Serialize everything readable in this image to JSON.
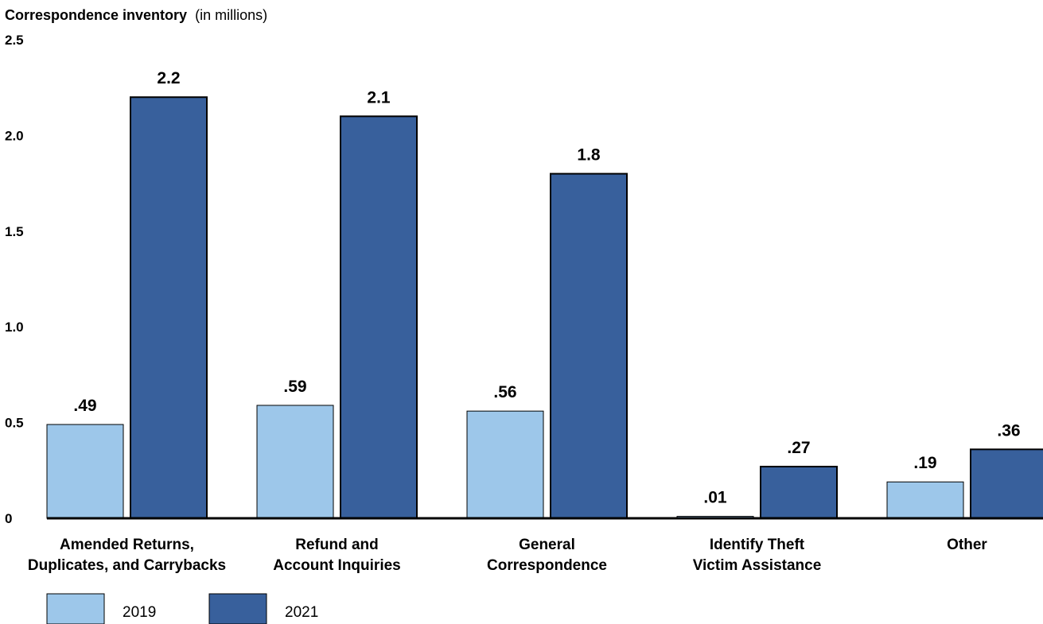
{
  "chart_data": {
    "type": "bar",
    "title": "Correspondence inventory",
    "title_unit": "(in millions)",
    "categories": [
      [
        "Amended Returns,",
        "Duplicates, and Carrybacks"
      ],
      [
        "Refund and",
        "Account Inquiries"
      ],
      [
        "General",
        "Correspondence"
      ],
      [
        "Identify Theft",
        "Victim Assistance"
      ],
      [
        "Other"
      ]
    ],
    "series": [
      {
        "name": "2019",
        "color": "#9dc7ea",
        "values": [
          0.49,
          0.59,
          0.56,
          0.01,
          0.19
        ],
        "labels": [
          ".49",
          ".59",
          ".56",
          ".01",
          ".19"
        ]
      },
      {
        "name": "2021",
        "color": "#38609c",
        "values": [
          2.2,
          2.1,
          1.8,
          0.27,
          0.36
        ],
        "labels": [
          "2.2",
          "2.1",
          "1.8",
          ".27",
          ".36"
        ]
      }
    ],
    "ylim": [
      0,
      2.5
    ],
    "yticks": [
      0,
      0.5,
      1.0,
      1.5,
      2.0,
      2.5
    ],
    "ytick_labels": [
      "0",
      "0.5",
      "1.0",
      "1.5",
      "2.0",
      "2.5"
    ],
    "grid": false,
    "legend_position": "bottom-left"
  }
}
